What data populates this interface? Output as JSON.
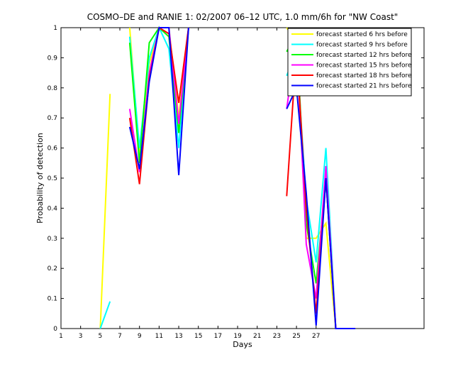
{
  "chart_data": {
    "type": "line",
    "title": "COSMO–DE and RANIE 1: 02/2007 06–12 UTC, 1.0 mm/6h for \"NW Coast\"",
    "xlabel": "Days",
    "ylabel": "Probability of detection",
    "xlim": [
      1,
      38
    ],
    "ylim": [
      0,
      1
    ],
    "x_ticks": [
      1,
      3,
      5,
      7,
      9,
      11,
      13,
      15,
      17,
      19,
      21,
      23,
      25,
      27
    ],
    "y_ticks": [
      0,
      0.1,
      0.2,
      0.3,
      0.4,
      0.5,
      0.6,
      0.7,
      0.8,
      0.9,
      1
    ],
    "legend_position": "top-right",
    "series": [
      {
        "name": "forecast started 6 hrs before",
        "color": "#ffff00",
        "segments": [
          [
            [
              5,
              0.0
            ],
            [
              6,
              0.78
            ]
          ],
          [
            [
              8,
              1.0
            ],
            [
              9,
              0.58
            ],
            [
              10,
              0.88
            ],
            [
              11,
              1.0
            ],
            [
              12,
              1.0
            ],
            [
              13,
              0.7
            ],
            [
              14,
              1.0
            ]
          ],
          [
            [
              24,
              1.0
            ],
            [
              25,
              0.95
            ],
            [
              26,
              0.3
            ],
            [
              27,
              0.3
            ],
            [
              28,
              0.35
            ],
            [
              29,
              0.0
            ]
          ]
        ]
      },
      {
        "name": "forecast started 9 hrs before",
        "color": "#00ffff",
        "segments": [
          [
            [
              5,
              0.0
            ],
            [
              6,
              0.09
            ]
          ],
          [
            [
              8,
              0.97
            ],
            [
              9,
              0.6
            ],
            [
              10,
              0.9
            ],
            [
              11,
              1.0
            ],
            [
              12,
              0.93
            ],
            [
              13,
              0.6
            ],
            [
              14,
              1.0
            ]
          ],
          [
            [
              24,
              0.84
            ],
            [
              25,
              0.92
            ],
            [
              26,
              0.43
            ],
            [
              27,
              0.22
            ],
            [
              28,
              0.6
            ],
            [
              29,
              0.0
            ]
          ]
        ]
      },
      {
        "name": "forecast started 12 hrs before",
        "color": "#00ff00",
        "segments": [
          [
            [
              8,
              0.95
            ],
            [
              9,
              0.55
            ],
            [
              10,
              0.95
            ],
            [
              11,
              1.0
            ],
            [
              12,
              0.97
            ],
            [
              13,
              0.65
            ],
            [
              14,
              1.0
            ]
          ],
          [
            [
              24,
              0.92
            ],
            [
              25,
              0.98
            ],
            [
              26,
              0.35
            ],
            [
              27,
              0.15
            ],
            [
              28,
              0.5
            ],
            [
              29,
              0.0
            ]
          ]
        ]
      },
      {
        "name": "forecast started 15 hrs before",
        "color": "#ff00ff",
        "segments": [
          [
            [
              8,
              0.73
            ],
            [
              9,
              0.52
            ],
            [
              10,
              0.85
            ],
            [
              11,
              1.0
            ],
            [
              12,
              1.0
            ],
            [
              13,
              0.68
            ],
            [
              14,
              1.0
            ]
          ],
          [
            [
              24,
              0.73
            ],
            [
              25,
              0.97
            ],
            [
              26,
              0.28
            ],
            [
              27,
              0.1
            ],
            [
              28,
              0.54
            ],
            [
              29,
              0.0
            ]
          ]
        ]
      },
      {
        "name": "forecast started 18 hrs before",
        "color": "#ff0000",
        "segments": [
          [
            [
              8,
              0.7
            ],
            [
              9,
              0.48
            ],
            [
              10,
              0.83
            ],
            [
              11,
              1.0
            ],
            [
              12,
              0.98
            ],
            [
              13,
              0.75
            ],
            [
              14,
              1.0
            ]
          ],
          [
            [
              24,
              0.44
            ],
            [
              25,
              0.93
            ],
            [
              26,
              0.4
            ],
            [
              27,
              0.05
            ],
            [
              28,
              0.5
            ],
            [
              29,
              0.0
            ]
          ]
        ]
      },
      {
        "name": "forecast started 21 hrs before",
        "color": "#0000ff",
        "segments": [
          [
            [
              8,
              0.67
            ],
            [
              9,
              0.53
            ],
            [
              10,
              0.82
            ],
            [
              11,
              1.0
            ],
            [
              12,
              1.0
            ],
            [
              13,
              0.51
            ],
            [
              14,
              1.0
            ]
          ],
          [
            [
              24,
              0.73
            ],
            [
              25,
              0.8
            ],
            [
              26,
              0.45
            ],
            [
              27,
              0.01
            ],
            [
              28,
              0.5
            ],
            [
              29,
              0.0
            ],
            [
              31,
              0.0
            ]
          ]
        ]
      }
    ]
  }
}
